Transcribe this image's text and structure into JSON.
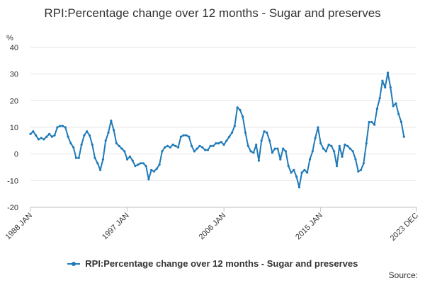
{
  "chart_data": {
    "type": "line",
    "title": "RPI:Percentage change over 12 months - Sugar and preserves",
    "unit_label": "%",
    "ylim": [
      -20,
      40
    ],
    "y_ticks": [
      "40",
      "30",
      "20",
      "10",
      "0",
      "-10",
      "-20"
    ],
    "x_tick_labels": [
      "1988 JAN",
      "1997 JAN",
      "2006 JAN",
      "2015 JAN",
      "2023 DEC"
    ],
    "xlim": [
      "1988-01",
      "2023-12"
    ],
    "grid": true,
    "legend_position": "bottom",
    "series": [
      {
        "name": "RPI:Percentage change over 12 months - Sugar and preserves",
        "color": "#1f7ab8",
        "points": [
          [
            "1988-01",
            7.5
          ],
          [
            "1988-04",
            8.5
          ],
          [
            "1988-07",
            7.0
          ],
          [
            "1988-10",
            5.5
          ],
          [
            "1989-01",
            6.0
          ],
          [
            "1989-04",
            5.5
          ],
          [
            "1989-07",
            6.5
          ],
          [
            "1989-10",
            7.5
          ],
          [
            "1990-01",
            6.5
          ],
          [
            "1990-04",
            7.0
          ],
          [
            "1990-07",
            10.0
          ],
          [
            "1990-10",
            10.5
          ],
          [
            "1991-01",
            10.5
          ],
          [
            "1991-04",
            10.0
          ],
          [
            "1991-07",
            6.5
          ],
          [
            "1991-10",
            4.0
          ],
          [
            "1992-01",
            2.5
          ],
          [
            "1992-04",
            -1.5
          ],
          [
            "1992-07",
            -1.5
          ],
          [
            "1992-10",
            3.5
          ],
          [
            "1993-01",
            7.0
          ],
          [
            "1993-04",
            8.5
          ],
          [
            "1993-07",
            7.0
          ],
          [
            "1993-10",
            3.5
          ],
          [
            "1994-01",
            -1.5
          ],
          [
            "1994-04",
            -3.5
          ],
          [
            "1994-07",
            -6.0
          ],
          [
            "1994-10",
            -2.0
          ],
          [
            "1995-01",
            5.0
          ],
          [
            "1995-04",
            8.0
          ],
          [
            "1995-07",
            12.5
          ],
          [
            "1995-10",
            9.0
          ],
          [
            "1996-01",
            4.0
          ],
          [
            "1996-04",
            3.0
          ],
          [
            "1996-07",
            2.0
          ],
          [
            "1996-10",
            1.0
          ],
          [
            "1997-01",
            -2.0
          ],
          [
            "1997-04",
            -1.0
          ],
          [
            "1997-07",
            -2.5
          ],
          [
            "1997-10",
            -4.5
          ],
          [
            "1998-01",
            -4.0
          ],
          [
            "1998-04",
            -3.5
          ],
          [
            "1998-07",
            -3.5
          ],
          [
            "1998-10",
            -4.5
          ],
          [
            "1999-01",
            -9.5
          ],
          [
            "1999-04",
            -6.0
          ],
          [
            "1999-07",
            -6.5
          ],
          [
            "1999-10",
            -5.5
          ],
          [
            "2000-01",
            -4.0
          ],
          [
            "2000-04",
            1.0
          ],
          [
            "2000-07",
            2.5
          ],
          [
            "2000-10",
            3.0
          ],
          [
            "2001-01",
            2.5
          ],
          [
            "2001-04",
            3.5
          ],
          [
            "2001-07",
            3.0
          ],
          [
            "2001-10",
            2.5
          ],
          [
            "2002-01",
            6.5
          ],
          [
            "2002-04",
            7.0
          ],
          [
            "2002-07",
            7.0
          ],
          [
            "2002-10",
            6.5
          ],
          [
            "2003-01",
            3.0
          ],
          [
            "2003-04",
            1.0
          ],
          [
            "2003-07",
            2.0
          ],
          [
            "2003-10",
            3.0
          ],
          [
            "2004-01",
            2.5
          ],
          [
            "2004-04",
            1.5
          ],
          [
            "2004-07",
            1.5
          ],
          [
            "2004-10",
            3.0
          ],
          [
            "2005-01",
            3.0
          ],
          [
            "2005-04",
            4.0
          ],
          [
            "2005-07",
            4.0
          ],
          [
            "2005-10",
            4.5
          ],
          [
            "2006-01",
            3.5
          ],
          [
            "2006-04",
            5.0
          ],
          [
            "2006-07",
            6.5
          ],
          [
            "2006-10",
            8.0
          ],
          [
            "2007-01",
            10.5
          ],
          [
            "2007-04",
            17.5
          ],
          [
            "2007-07",
            16.5
          ],
          [
            "2007-10",
            14.0
          ],
          [
            "2008-01",
            8.0
          ],
          [
            "2008-04",
            3.0
          ],
          [
            "2008-07",
            1.0
          ],
          [
            "2008-10",
            0.5
          ],
          [
            "2009-01",
            3.5
          ],
          [
            "2009-04",
            -2.5
          ],
          [
            "2009-07",
            5.0
          ],
          [
            "2009-10",
            8.5
          ],
          [
            "2010-01",
            8.0
          ],
          [
            "2010-04",
            5.0
          ],
          [
            "2010-07",
            0.5
          ],
          [
            "2010-10",
            2.0
          ],
          [
            "2011-01",
            2.0
          ],
          [
            "2011-04",
            -2.0
          ],
          [
            "2011-07",
            2.0
          ],
          [
            "2011-10",
            1.0
          ],
          [
            "2012-01",
            -4.5
          ],
          [
            "2012-04",
            -7.0
          ],
          [
            "2012-07",
            -6.0
          ],
          [
            "2012-10",
            -8.5
          ],
          [
            "2013-01",
            -12.5
          ],
          [
            "2013-04",
            -7.0
          ],
          [
            "2013-07",
            -6.0
          ],
          [
            "2013-10",
            -7.0
          ],
          [
            "2014-01",
            -2.0
          ],
          [
            "2014-04",
            1.0
          ],
          [
            "2014-07",
            6.0
          ],
          [
            "2014-10",
            10.0
          ],
          [
            "2015-01",
            4.0
          ],
          [
            "2015-04",
            2.0
          ],
          [
            "2015-07",
            1.0
          ],
          [
            "2015-10",
            3.5
          ],
          [
            "2016-01",
            3.0
          ],
          [
            "2016-04",
            1.0
          ],
          [
            "2016-07",
            -4.5
          ],
          [
            "2016-10",
            3.0
          ],
          [
            "2017-01",
            -1.0
          ],
          [
            "2017-04",
            3.5
          ],
          [
            "2017-07",
            3.0
          ],
          [
            "2017-10",
            2.0
          ],
          [
            "2018-01",
            1.0
          ],
          [
            "2018-04",
            -2.0
          ],
          [
            "2018-07",
            -6.5
          ],
          [
            "2018-10",
            -6.0
          ],
          [
            "2019-01",
            -3.5
          ],
          [
            "2019-04",
            4.0
          ],
          [
            "2019-07",
            12.0
          ],
          [
            "2019-10",
            12.0
          ],
          [
            "2020-01",
            11.0
          ],
          [
            "2020-04",
            17.0
          ],
          [
            "2020-07",
            21.0
          ],
          [
            "2020-10",
            27.5
          ],
          [
            "2021-01",
            25.0
          ],
          [
            "2021-04",
            30.5
          ],
          [
            "2021-07",
            25.0
          ],
          [
            "2021-10",
            18.0
          ],
          [
            "2022-01",
            19.0
          ],
          [
            "2022-04",
            15.0
          ],
          [
            "2022-07",
            12.0
          ],
          [
            "2022-10",
            6.5
          ]
        ]
      }
    ]
  },
  "legend": {
    "label": "RPI:Percentage change over 12 months - Sugar and preserves"
  },
  "footer": {
    "source_label": "Source:"
  }
}
